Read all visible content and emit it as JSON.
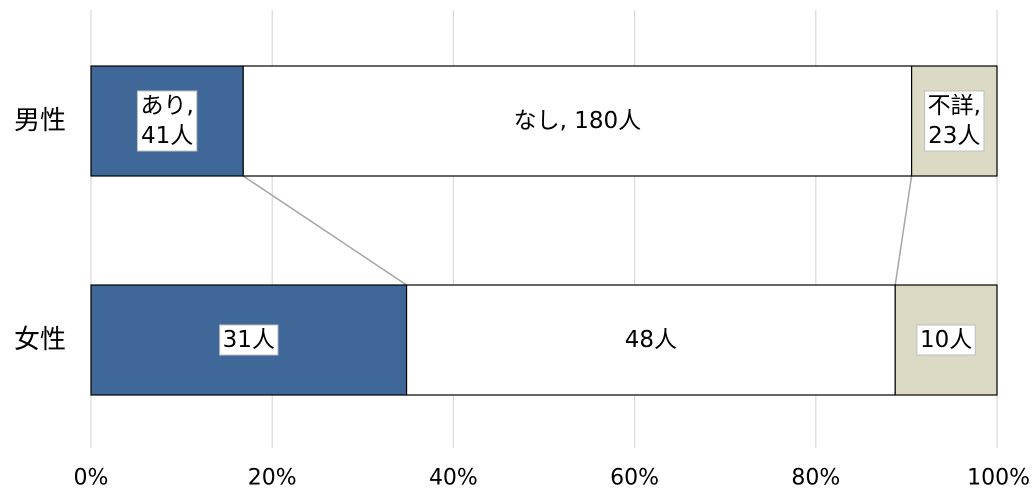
{
  "chart_data": {
    "type": "bar",
    "orientation": "horizontal",
    "stacked": "percent",
    "categories": [
      "男性",
      "女性"
    ],
    "series": [
      {
        "values": [
          41,
          31
        ],
        "color": "#3f6798",
        "labels": [
          "あり,\n41人",
          "31人"
        ]
      },
      {
        "values": [
          180,
          48
        ],
        "color": "#ffffff",
        "labels": [
          "なし, 180人",
          "48人"
        ]
      },
      {
        "values": [
          23,
          10
        ],
        "color": "#dcd9c5",
        "labels": [
          "不詳,\n23人",
          "10人"
        ]
      }
    ],
    "xlim": [
      0,
      100
    ],
    "xticks": [
      "0%",
      "20%",
      "40%",
      "60%",
      "80%",
      "100%"
    ],
    "grid": true,
    "series_lines": true,
    "legend": "none"
  }
}
